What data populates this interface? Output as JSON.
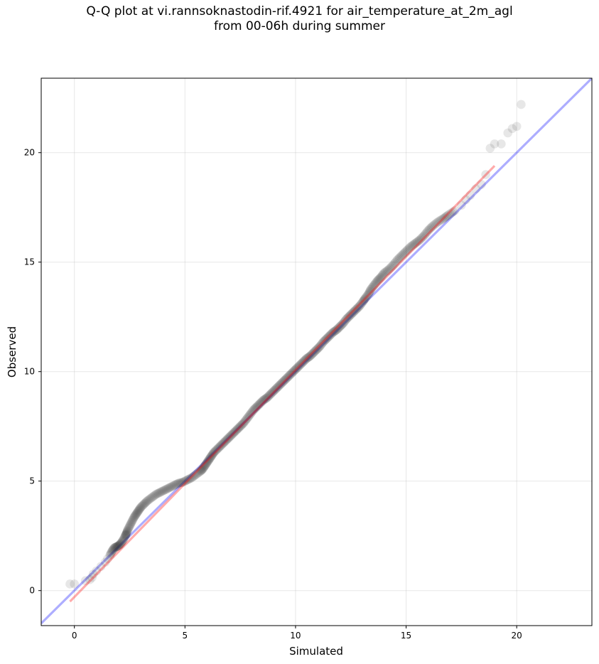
{
  "chart_data": {
    "type": "scatter",
    "title_line1": "Q-Q plot at vi.rannsoknastodin-rif.4921 for air_temperature_at_2m_agl",
    "title_line2": "from 00-06h during summer",
    "xlabel": "Simulated",
    "ylabel": "Observed",
    "xlim": [
      -1.5,
      23.4
    ],
    "ylim": [
      -1.6,
      23.4
    ],
    "xticks": [
      0,
      5,
      10,
      15,
      20
    ],
    "yticks": [
      0,
      5,
      10,
      15,
      20
    ],
    "grid": true,
    "colors": {
      "points": "#222222",
      "identity_line": "#0000ff",
      "fit_line": "#ff0000"
    },
    "identity_line": {
      "from": [
        -1.5,
        -1.5
      ],
      "to": [
        23.4,
        23.4
      ]
    },
    "fit_line": {
      "from": [
        -0.2,
        -0.5
      ],
      "to": [
        19.0,
        19.4
      ]
    },
    "points": [
      [
        -0.2,
        0.3
      ],
      [
        0.0,
        0.3
      ],
      [
        0.5,
        0.45
      ],
      [
        0.7,
        0.5
      ],
      [
        0.8,
        0.6
      ],
      [
        0.85,
        0.75
      ],
      [
        1.0,
        0.9
      ],
      [
        1.2,
        1.1
      ],
      [
        1.4,
        1.3
      ],
      [
        1.5,
        1.45
      ],
      [
        1.6,
        1.6
      ],
      [
        1.7,
        1.8
      ],
      [
        1.8,
        1.95
      ],
      [
        1.9,
        2.0
      ],
      [
        2.0,
        2.05
      ],
      [
        2.1,
        2.15
      ],
      [
        2.2,
        2.3
      ],
      [
        2.3,
        2.5
      ],
      [
        2.35,
        2.6
      ],
      [
        2.4,
        2.75
      ],
      [
        2.5,
        2.95
      ],
      [
        2.6,
        3.15
      ],
      [
        2.7,
        3.35
      ],
      [
        2.8,
        3.5
      ],
      [
        2.9,
        3.65
      ],
      [
        3.0,
        3.8
      ],
      [
        3.15,
        3.95
      ],
      [
        3.3,
        4.1
      ],
      [
        3.5,
        4.25
      ],
      [
        3.7,
        4.4
      ],
      [
        3.9,
        4.5
      ],
      [
        4.1,
        4.6
      ],
      [
        4.3,
        4.7
      ],
      [
        4.5,
        4.8
      ],
      [
        4.7,
        4.9
      ],
      [
        4.9,
        4.95
      ],
      [
        5.1,
        5.05
      ],
      [
        5.3,
        5.15
      ],
      [
        5.5,
        5.3
      ],
      [
        5.7,
        5.45
      ],
      [
        5.8,
        5.55
      ],
      [
        5.9,
        5.7
      ],
      [
        6.0,
        5.85
      ],
      [
        6.1,
        6.0
      ],
      [
        6.2,
        6.15
      ],
      [
        6.3,
        6.3
      ],
      [
        6.45,
        6.45
      ],
      [
        6.6,
        6.6
      ],
      [
        6.75,
        6.75
      ],
      [
        6.9,
        6.9
      ],
      [
        7.05,
        7.05
      ],
      [
        7.2,
        7.2
      ],
      [
        7.35,
        7.35
      ],
      [
        7.5,
        7.5
      ],
      [
        7.65,
        7.65
      ],
      [
        7.8,
        7.85
      ],
      [
        7.95,
        8.05
      ],
      [
        8.1,
        8.25
      ],
      [
        8.25,
        8.4
      ],
      [
        8.4,
        8.55
      ],
      [
        8.55,
        8.7
      ],
      [
        8.7,
        8.8
      ],
      [
        8.85,
        8.95
      ],
      [
        9.0,
        9.1
      ],
      [
        9.15,
        9.25
      ],
      [
        9.3,
        9.4
      ],
      [
        9.45,
        9.55
      ],
      [
        9.6,
        9.7
      ],
      [
        9.75,
        9.85
      ],
      [
        9.9,
        10.0
      ],
      [
        10.05,
        10.15
      ],
      [
        10.2,
        10.3
      ],
      [
        10.35,
        10.45
      ],
      [
        10.5,
        10.6
      ],
      [
        10.65,
        10.7
      ],
      [
        10.8,
        10.85
      ],
      [
        10.95,
        11.0
      ],
      [
        11.1,
        11.15
      ],
      [
        11.25,
        11.35
      ],
      [
        11.4,
        11.5
      ],
      [
        11.55,
        11.65
      ],
      [
        11.7,
        11.8
      ],
      [
        11.85,
        11.9
      ],
      [
        12.0,
        12.05
      ],
      [
        12.15,
        12.2
      ],
      [
        12.3,
        12.4
      ],
      [
        12.45,
        12.55
      ],
      [
        12.6,
        12.7
      ],
      [
        12.75,
        12.85
      ],
      [
        12.9,
        13.0
      ],
      [
        13.05,
        13.2
      ],
      [
        13.15,
        13.35
      ],
      [
        13.3,
        13.55
      ],
      [
        13.4,
        13.75
      ],
      [
        13.55,
        13.95
      ],
      [
        13.7,
        14.15
      ],
      [
        13.85,
        14.3
      ],
      [
        14.0,
        14.5
      ],
      [
        14.2,
        14.65
      ],
      [
        14.4,
        14.85
      ],
      [
        14.6,
        15.1
      ],
      [
        14.8,
        15.3
      ],
      [
        15.0,
        15.5
      ],
      [
        15.2,
        15.7
      ],
      [
        15.4,
        15.85
      ],
      [
        15.6,
        16.0
      ],
      [
        15.8,
        16.2
      ],
      [
        16.0,
        16.45
      ],
      [
        16.2,
        16.65
      ],
      [
        16.45,
        16.85
      ],
      [
        16.7,
        17.0
      ],
      [
        16.9,
        17.15
      ],
      [
        17.2,
        17.35
      ],
      [
        17.5,
        17.6
      ],
      [
        17.7,
        17.85
      ],
      [
        17.9,
        18.05
      ],
      [
        18.15,
        18.35
      ],
      [
        18.4,
        18.55
      ],
      [
        18.6,
        19.0
      ],
      [
        18.8,
        20.2
      ],
      [
        19.0,
        20.4
      ],
      [
        19.3,
        20.4
      ],
      [
        19.6,
        20.9
      ],
      [
        19.8,
        21.1
      ],
      [
        20.0,
        21.2
      ],
      [
        20.2,
        22.2
      ]
    ]
  }
}
